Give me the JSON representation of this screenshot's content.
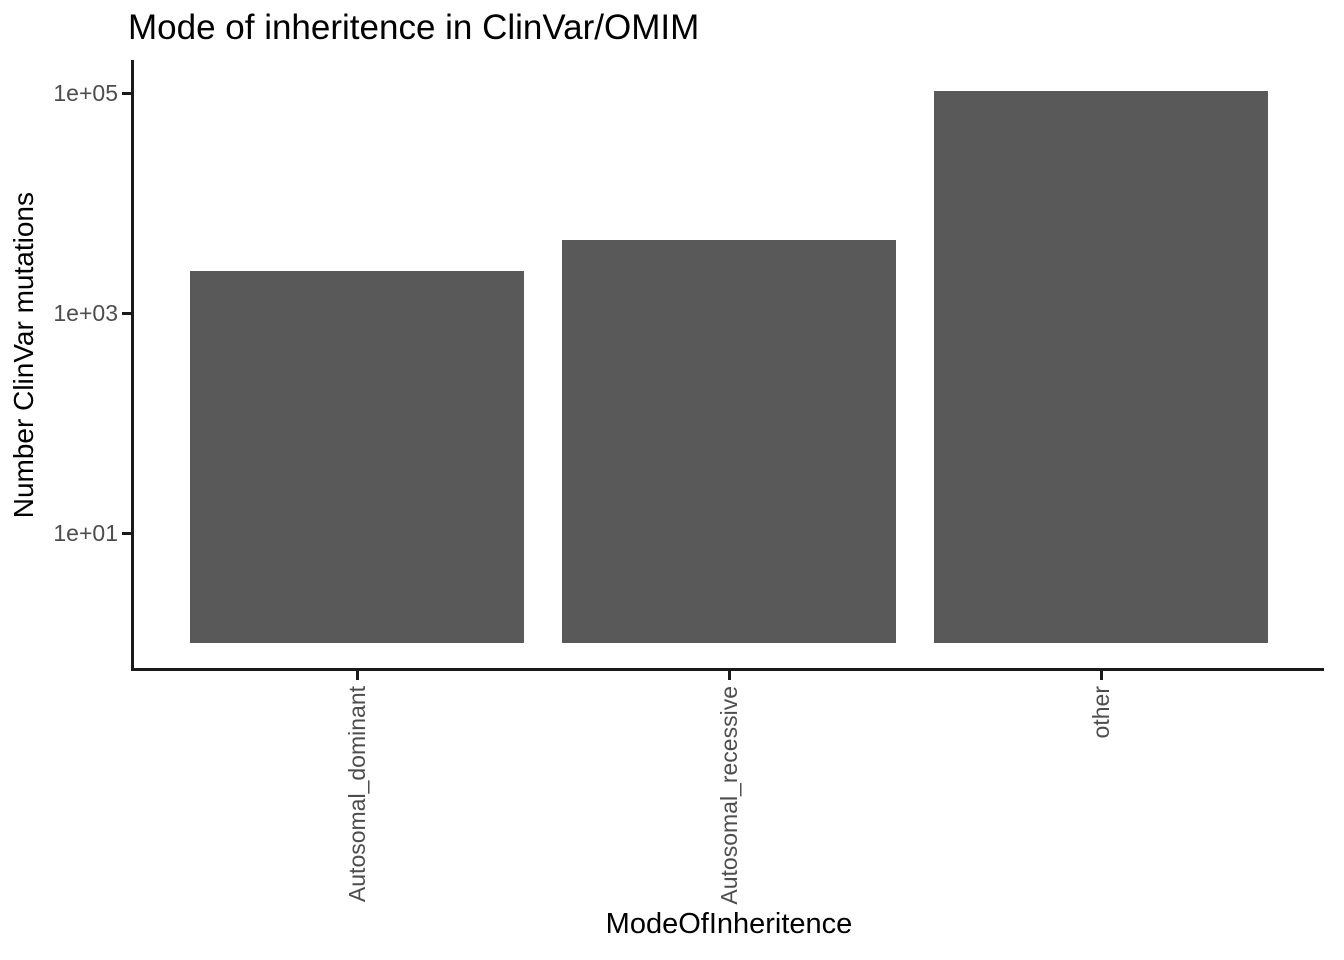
{
  "chart_data": {
    "type": "bar",
    "title": "Mode of inheritence in ClinVar/OMIM",
    "xlabel": "ModeOfInheritence",
    "ylabel": "Number ClinVar mutations",
    "categories": [
      "Autosomal_dominant",
      "Autosomal_recessive",
      "other"
    ],
    "values": [
      2400,
      4600,
      104000
    ],
    "bar_base_value": 1,
    "y_scale": "log10",
    "y_ticks": [
      {
        "label": "1e+01",
        "value": 10
      },
      {
        "label": "1e+03",
        "value": 1000
      },
      {
        "label": "1e+05",
        "value": 100000
      }
    ],
    "ylim_log10": [
      -0.25,
      5.26
    ],
    "grid": false,
    "legend_position": "none",
    "bar_color": "#595959",
    "axis_line_color": "#1a1a1a",
    "tick_label_color": "#4d4d4d",
    "title_color": "#000000"
  }
}
